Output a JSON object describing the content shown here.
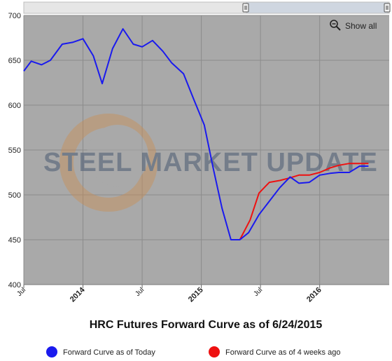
{
  "chart_data": {
    "type": "line",
    "title": "HRC Futures Forward Curve as of 6/24/2015",
    "watermark": "STEEL MARKET UPDATE",
    "xlabel": "",
    "ylabel": "",
    "ylim": [
      400,
      700
    ],
    "y_ticks": [
      400,
      450,
      500,
      550,
      600,
      650,
      700
    ],
    "xlim": [
      0,
      24.7
    ],
    "x_ticks": [
      {
        "x": 0,
        "label": "Jul",
        "bold": false
      },
      {
        "x": 4,
        "label": "2014",
        "bold": true
      },
      {
        "x": 8,
        "label": "Jul",
        "bold": false
      },
      {
        "x": 12,
        "label": "2015",
        "bold": true
      },
      {
        "x": 16,
        "label": "Jul",
        "bold": false
      },
      {
        "x": 20,
        "label": "2016",
        "bold": true
      }
    ],
    "grid": true,
    "legend_position": "bottom",
    "series": [
      {
        "name": "Forward Curve as of Today",
        "color": "#1a1aee",
        "points": [
          [
            0,
            638
          ],
          [
            0.5,
            649
          ],
          [
            1.2,
            645
          ],
          [
            1.8,
            650
          ],
          [
            2.6,
            668
          ],
          [
            3.3,
            670
          ],
          [
            4,
            674
          ],
          [
            4.7,
            655
          ],
          [
            5.3,
            624
          ],
          [
            6,
            663
          ],
          [
            6.7,
            685
          ],
          [
            7.4,
            668
          ],
          [
            8,
            665
          ],
          [
            8.7,
            672
          ],
          [
            9.4,
            660
          ],
          [
            10,
            647
          ],
          [
            10.8,
            635
          ],
          [
            11.5,
            606
          ],
          [
            12.2,
            578
          ],
          [
            12.8,
            530
          ],
          [
            13.4,
            485
          ],
          [
            14,
            450
          ],
          [
            14.6,
            450
          ],
          [
            15.2,
            458
          ],
          [
            15.9,
            478
          ],
          [
            16.6,
            493
          ],
          [
            17.3,
            508
          ],
          [
            18,
            520
          ],
          [
            18.6,
            513
          ],
          [
            19.3,
            514
          ],
          [
            20,
            522
          ],
          [
            20.7,
            524
          ],
          [
            21.3,
            525
          ],
          [
            22,
            525
          ],
          [
            22.7,
            532
          ],
          [
            23.3,
            532
          ]
        ]
      },
      {
        "name": "Forward Curve as of 4 weeks ago",
        "color": "#ee1111",
        "points": [
          [
            14.6,
            450
          ],
          [
            15.3,
            472
          ],
          [
            15.9,
            502
          ],
          [
            16.6,
            514
          ],
          [
            17.3,
            516
          ],
          [
            18,
            519
          ],
          [
            18.6,
            522
          ],
          [
            19.3,
            522
          ],
          [
            20,
            525
          ],
          [
            20.7,
            530
          ],
          [
            21.3,
            533
          ],
          [
            22,
            535
          ],
          [
            22.7,
            535
          ],
          [
            23.3,
            535
          ]
        ]
      }
    ]
  },
  "toolbar": {
    "show_all_label": "Show all",
    "zoom_icon": "zoom-out-icon"
  }
}
